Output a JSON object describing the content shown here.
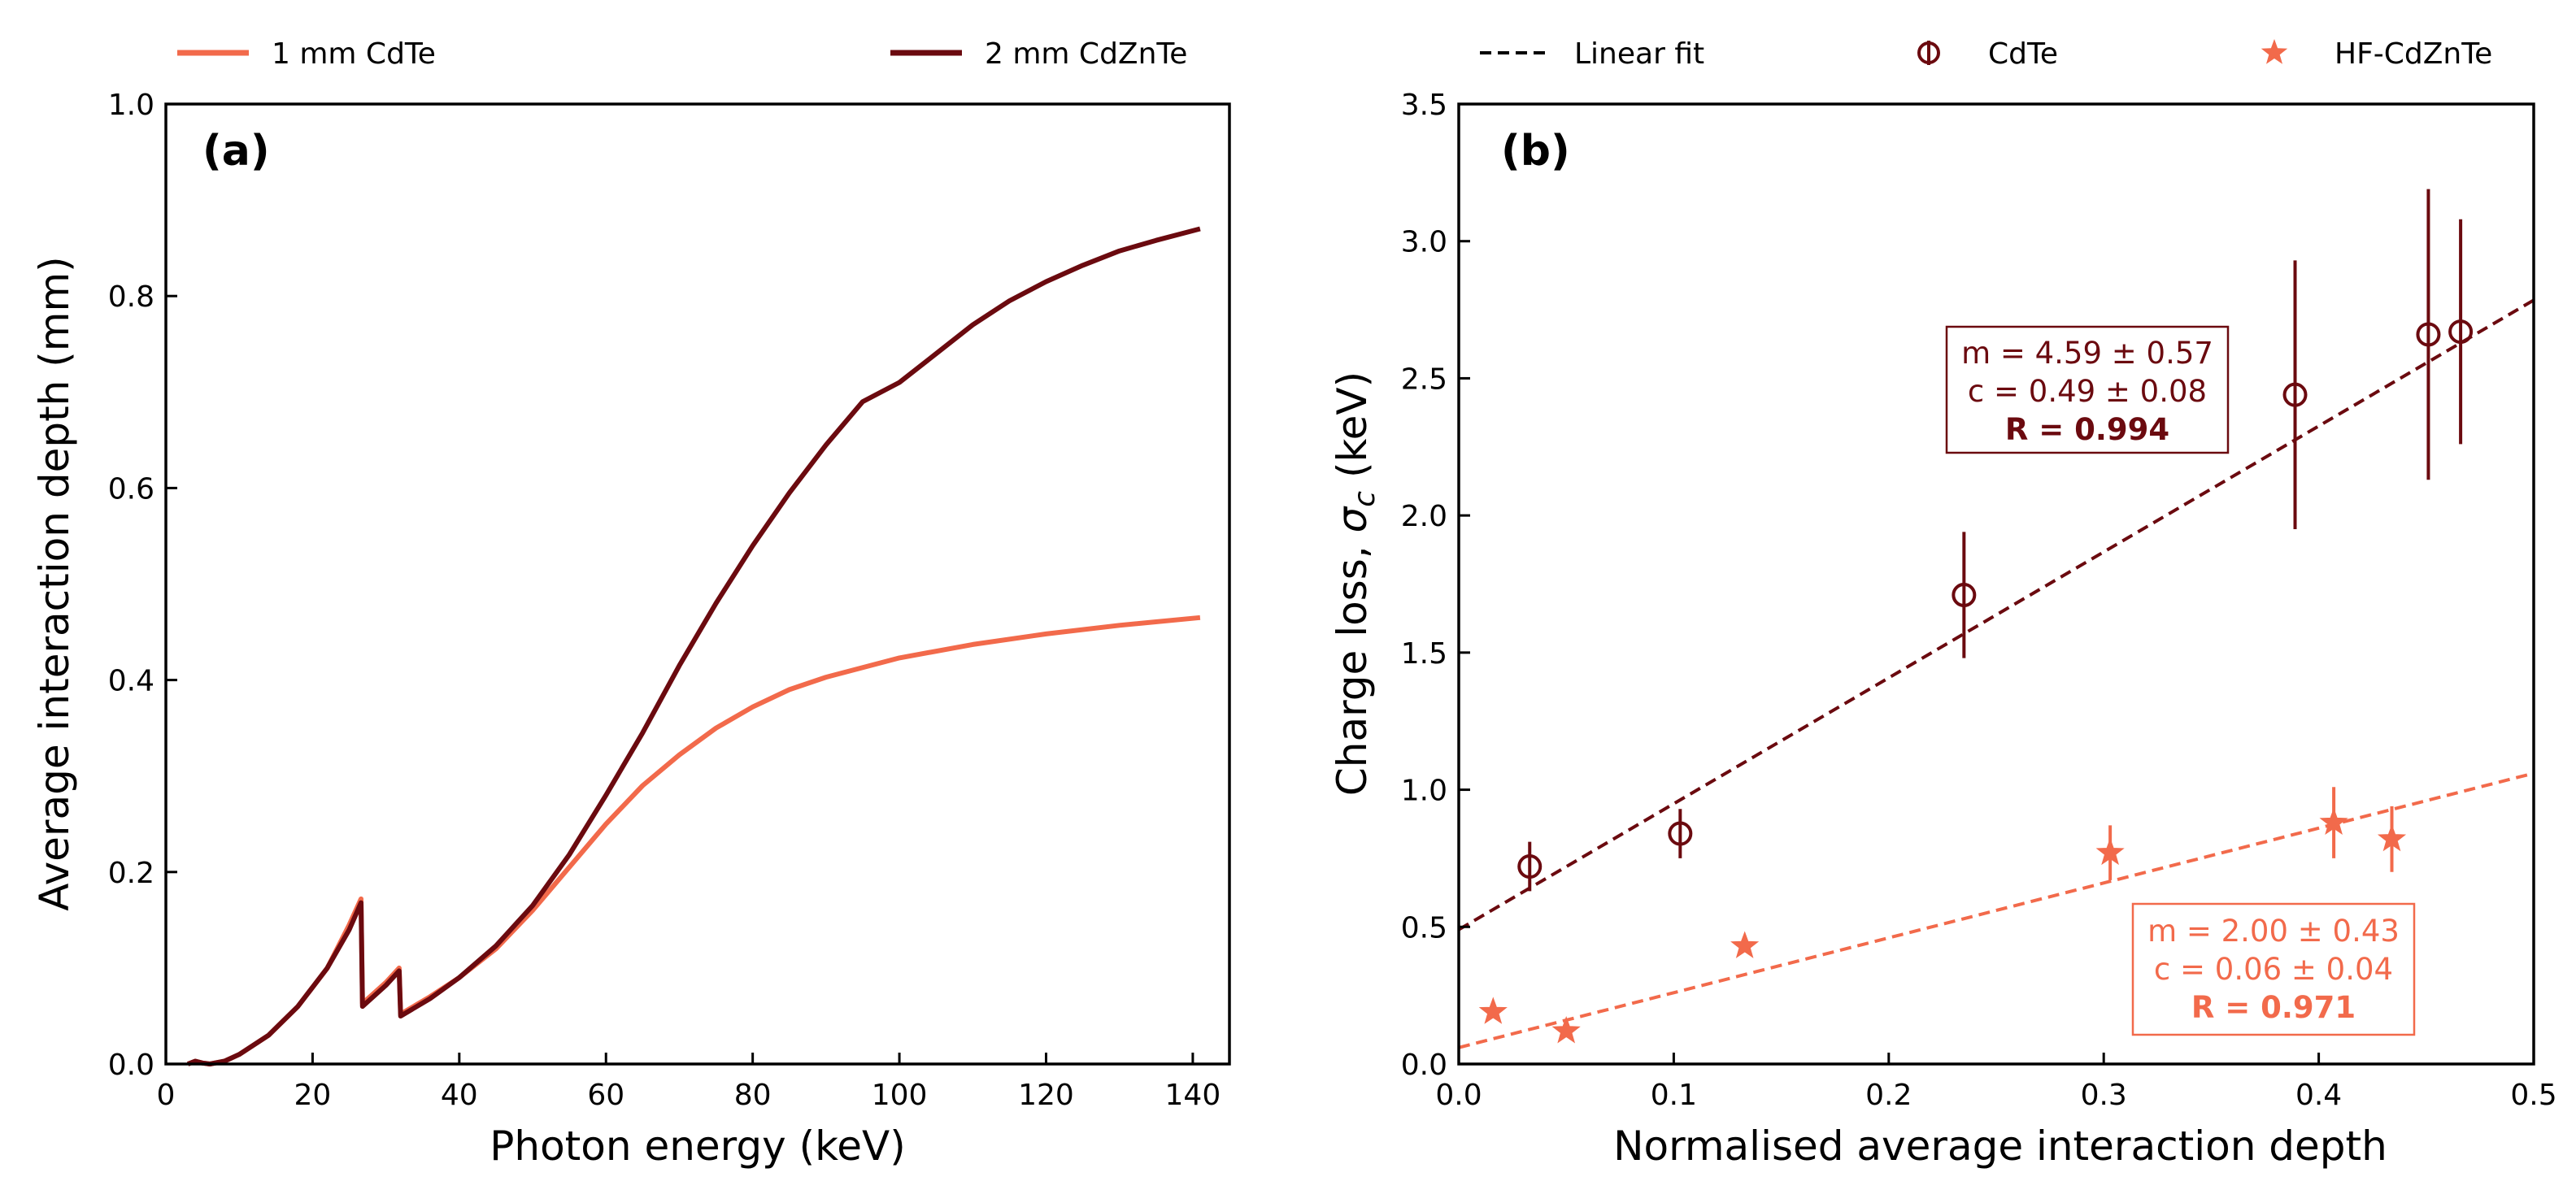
{
  "colors": {
    "cdte": "#f26a4b",
    "czt": "#6b0a0f",
    "axis": "#000000"
  },
  "chart_data": [
    {
      "type": "line",
      "panel_label": "(a)",
      "xlabel": "Photon energy (keV)",
      "ylabel": "Average interaction depth (mm)",
      "xlim": [
        0,
        145
      ],
      "ylim": [
        0,
        1.0
      ],
      "xticks": [
        0,
        20,
        40,
        60,
        80,
        100,
        120,
        140
      ],
      "yticks": [
        0.0,
        0.2,
        0.4,
        0.6,
        0.8,
        1.0
      ],
      "xtick_labels": [
        "0",
        "20",
        "40",
        "60",
        "80",
        "100",
        "120",
        "140"
      ],
      "ytick_labels": [
        "0.0",
        "0.2",
        "0.4",
        "0.6",
        "0.8",
        "1.0"
      ],
      "series": [
        {
          "name": "1 mm CdTe",
          "color_key": "cdte",
          "points": [
            [
              3,
              0
            ],
            [
              4,
              0.003
            ],
            [
              5,
              0.001
            ],
            [
              6,
              0
            ],
            [
              8,
              0.003
            ],
            [
              10,
              0.01
            ],
            [
              14,
              0.03
            ],
            [
              18,
              0.06
            ],
            [
              22,
              0.1
            ],
            [
              25,
              0.145
            ],
            [
              26.6,
              0.172
            ],
            [
              26.8,
              0.063
            ],
            [
              30,
              0.085
            ],
            [
              31.8,
              0.1
            ],
            [
              32,
              0.052
            ],
            [
              36,
              0.07
            ],
            [
              40,
              0.09
            ],
            [
              45,
              0.12
            ],
            [
              50,
              0.16
            ],
            [
              55,
              0.205
            ],
            [
              60,
              0.25
            ],
            [
              65,
              0.29
            ],
            [
              70,
              0.322
            ],
            [
              75,
              0.35
            ],
            [
              80,
              0.372
            ],
            [
              85,
              0.39
            ],
            [
              90,
              0.403
            ],
            [
              100,
              0.423
            ],
            [
              110,
              0.437
            ],
            [
              120,
              0.448
            ],
            [
              130,
              0.457
            ],
            [
              141,
              0.465
            ]
          ]
        },
        {
          "name": "2 mm CdZnTe",
          "color_key": "czt",
          "points": [
            [
              3,
              0
            ],
            [
              4,
              0.003
            ],
            [
              5,
              0.001
            ],
            [
              6,
              0
            ],
            [
              8,
              0.003
            ],
            [
              10,
              0.01
            ],
            [
              14,
              0.03
            ],
            [
              18,
              0.06
            ],
            [
              22,
              0.1
            ],
            [
              25,
              0.14
            ],
            [
              26.6,
              0.168
            ],
            [
              26.8,
              0.06
            ],
            [
              30,
              0.082
            ],
            [
              31.8,
              0.097
            ],
            [
              32,
              0.05
            ],
            [
              36,
              0.068
            ],
            [
              40,
              0.09
            ],
            [
              45,
              0.123
            ],
            [
              50,
              0.165
            ],
            [
              55,
              0.218
            ],
            [
              60,
              0.28
            ],
            [
              65,
              0.345
            ],
            [
              70,
              0.415
            ],
            [
              75,
              0.48
            ],
            [
              80,
              0.54
            ],
            [
              85,
              0.595
            ],
            [
              90,
              0.645
            ],
            [
              95,
              0.69
            ],
            [
              100,
              0.71
            ],
            [
              105,
              0.74
            ],
            [
              110,
              0.77
            ],
            [
              115,
              0.795
            ],
            [
              120,
              0.815
            ],
            [
              125,
              0.832
            ],
            [
              130,
              0.847
            ],
            [
              135,
              0.858
            ],
            [
              141,
              0.87
            ]
          ]
        }
      ]
    },
    {
      "type": "scatter",
      "panel_label": "(b)",
      "xlabel": "Normalised average interaction depth",
      "ylabel_main": "Charge loss, ",
      "ylabel_symbol": "σ",
      "ylabel_sub": "c",
      "ylabel_unit": " (keV)",
      "xlim": [
        0,
        0.5
      ],
      "ylim": [
        0,
        3.5
      ],
      "xticks": [
        0.0,
        0.1,
        0.2,
        0.3,
        0.4,
        0.5
      ],
      "yticks": [
        0.0,
        0.5,
        1.0,
        1.5,
        2.0,
        2.5,
        3.0,
        3.5
      ],
      "xtick_labels": [
        "0.0",
        "0.1",
        "0.2",
        "0.3",
        "0.4",
        "0.5"
      ],
      "ytick_labels": [
        "0.0",
        "0.5",
        "1.0",
        "1.5",
        "2.0",
        "2.5",
        "3.0",
        "3.5"
      ],
      "series": [
        {
          "name": "CdTe",
          "marker": "circle",
          "color_key": "czt",
          "points": [
            {
              "x": 0.033,
              "y": 0.72,
              "err": 0.09
            },
            {
              "x": 0.103,
              "y": 0.84,
              "err": 0.09
            },
            {
              "x": 0.235,
              "y": 1.71,
              "err": 0.23
            },
            {
              "x": 0.389,
              "y": 2.44,
              "err": 0.49
            },
            {
              "x": 0.451,
              "y": 2.66,
              "err": 0.53
            },
            {
              "x": 0.466,
              "y": 2.67,
              "err": 0.41
            }
          ],
          "fit": {
            "m": 4.59,
            "c": 0.49
          }
        },
        {
          "name": "HF-CdZnTe",
          "marker": "star",
          "color_key": "cdte",
          "points": [
            {
              "x": 0.016,
              "y": 0.19,
              "err": 0.0
            },
            {
              "x": 0.05,
              "y": 0.12,
              "err": 0.0
            },
            {
              "x": 0.133,
              "y": 0.43,
              "err": 0.0
            },
            {
              "x": 0.303,
              "y": 0.77,
              "err": 0.1
            },
            {
              "x": 0.407,
              "y": 0.88,
              "err": 0.13
            },
            {
              "x": 0.434,
              "y": 0.82,
              "err": 0.12
            }
          ],
          "fit": {
            "m": 2.0,
            "c": 0.06
          }
        }
      ],
      "fit_boxes": {
        "cdte": {
          "m_text": "m = 4.59 ± 0.57",
          "c_text": "c = 0.49 ± 0.08",
          "r_text": "R = 0.994"
        },
        "hf": {
          "m_text": "m = 2.00 ± 0.43",
          "c_text": "c = 0.06 ± 0.04",
          "r_text": "R = 0.971"
        }
      }
    }
  ],
  "legend_a": {
    "cdte_label": "1 mm CdTe",
    "czt_label": "2 mm CdZnTe"
  },
  "legend_b": {
    "fit_label": "Linear fit",
    "cdte_label": "CdTe",
    "hf_label": "HF-CdZnTe"
  }
}
